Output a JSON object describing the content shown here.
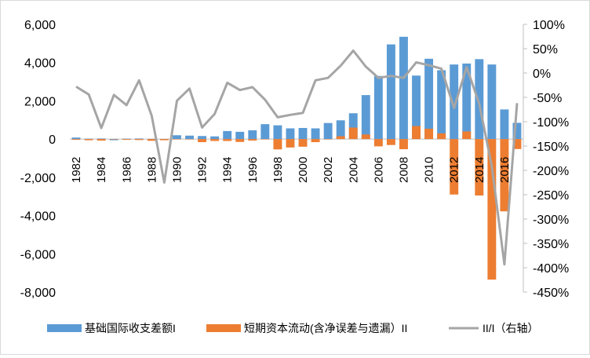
{
  "chart_data": {
    "type": "bar",
    "title": "",
    "xlabel": "",
    "ylabel": "",
    "ylim": [
      -8000,
      6000
    ],
    "y2lim": [
      -4.5,
      1.0
    ],
    "yticks": [
      "6,000",
      "4,000",
      "2,000",
      "0",
      "-2,000",
      "-4,000",
      "-6,000",
      "-8,000"
    ],
    "y2ticks": [
      "100%",
      "50%",
      "0%",
      "-50%",
      "-100%",
      "-150%",
      "-200%",
      "-250%",
      "-300%",
      "-350%",
      "-400%",
      "-450%"
    ],
    "xtick_labels": [
      "1982",
      "1984",
      "1986",
      "1988",
      "1990",
      "1992",
      "1994",
      "1996",
      "1998",
      "2000",
      "2002",
      "2004",
      "2006",
      "2008",
      "2010",
      "2012",
      "2014",
      "2016"
    ],
    "categories": [
      1982,
      1983,
      1984,
      1985,
      1986,
      1987,
      1988,
      1989,
      1990,
      1991,
      1992,
      1993,
      1994,
      1995,
      1996,
      1997,
      1998,
      1999,
      2000,
      2001,
      2002,
      2003,
      2004,
      2005,
      2006,
      2007,
      2008,
      2009,
      2010,
      2011,
      2012,
      2013,
      2014,
      2015,
      2016,
      2017
    ],
    "legend_position": "bottom",
    "series": [
      {
        "name": "基础国际收支差额I",
        "type": "bar",
        "color": "#5b9bd5",
        "axis": "left",
        "values": [
          80,
          20,
          30,
          -60,
          20,
          30,
          10,
          0,
          200,
          180,
          160,
          140,
          420,
          380,
          460,
          780,
          720,
          560,
          580,
          560,
          840,
          980,
          1350,
          2300,
          3300,
          4950,
          5350,
          3320,
          4200,
          3600,
          3900,
          3950,
          4180,
          3900,
          1550,
          850
        ]
      },
      {
        "name": "短期资本流动(含净误差与遗漏）II",
        "type": "bar",
        "color": "#ed7d31",
        "axis": "left",
        "values": [
          -40,
          -60,
          -80,
          -20,
          -40,
          -50,
          -90,
          -60,
          0,
          0,
          -160,
          -100,
          -100,
          -150,
          -80,
          0,
          -540,
          -440,
          -400,
          -160,
          0,
          150,
          600,
          240,
          -380,
          -310,
          -530,
          680,
          540,
          300,
          -2900,
          400,
          -2950,
          -7350,
          -3780,
          -520
        ]
      },
      {
        "name": "II/I（右轴）",
        "type": "line",
        "color": "#a5a5a5",
        "axis": "right",
        "values": [
          -0.28,
          -0.44,
          -1.13,
          -0.45,
          -0.66,
          -0.15,
          -0.88,
          -2.25,
          -0.57,
          -0.32,
          -1.12,
          -0.84,
          -0.2,
          -0.35,
          -0.29,
          -0.55,
          -0.91,
          -0.86,
          -0.82,
          -0.15,
          -0.1,
          0.15,
          0.46,
          0.13,
          -0.1,
          -0.06,
          -0.1,
          0.22,
          0.16,
          0.09,
          -0.72,
          0.12,
          -0.63,
          -1.92,
          -3.93,
          -0.62
        ]
      }
    ]
  }
}
